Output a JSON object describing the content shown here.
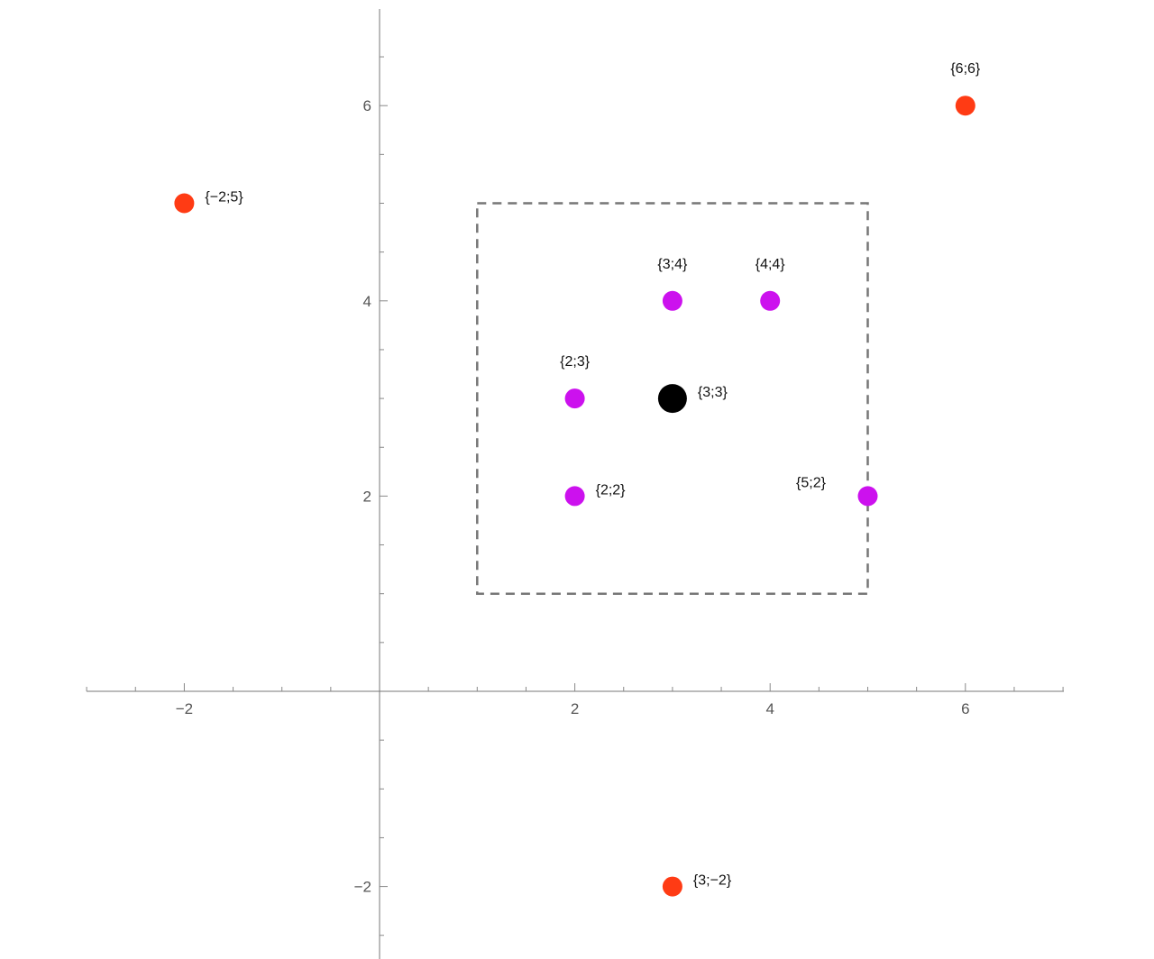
{
  "chart_data": {
    "type": "scatter",
    "xlim": [
      -3,
      7
    ],
    "ylim": [
      -2.7,
      7
    ],
    "x_ticks": [
      -2,
      2,
      4,
      6
    ],
    "y_ticks": [
      -2,
      2,
      4,
      6
    ],
    "x_tick_labels": [
      "−2",
      "2",
      "4",
      "6"
    ],
    "y_tick_labels": [
      "−2",
      "2",
      "4",
      "6"
    ],
    "grid": false,
    "region": {
      "x_min": 1,
      "x_max": 5,
      "y_min": 1,
      "y_max": 5,
      "style": "dashed",
      "color": "#777777"
    },
    "points": [
      {
        "x": -2,
        "y": 5,
        "label": "{−2;5}",
        "color": "#ff3b14",
        "label_pos": "right"
      },
      {
        "x": 6,
        "y": 6,
        "label": "{6;6}",
        "color": "#ff3b14",
        "label_pos": "above"
      },
      {
        "x": 3,
        "y": -2,
        "label": "{3;−2}",
        "color": "#ff3b14",
        "label_pos": "right"
      },
      {
        "x": 3,
        "y": 4,
        "label": "{3;4}",
        "color": "#cc11ee",
        "label_pos": "above"
      },
      {
        "x": 4,
        "y": 4,
        "label": "{4;4}",
        "color": "#cc11ee",
        "label_pos": "above"
      },
      {
        "x": 2,
        "y": 3,
        "label": "{2;3}",
        "color": "#cc11ee",
        "label_pos": "above"
      },
      {
        "x": 2,
        "y": 2,
        "label": "{2;2}",
        "color": "#cc11ee",
        "label_pos": "right"
      },
      {
        "x": 5,
        "y": 2,
        "label": "{5;2}",
        "color": "#cc11ee",
        "label_pos": "above-left"
      },
      {
        "x": 3,
        "y": 3,
        "label": "{3;3}",
        "color": "#000000",
        "label_pos": "right",
        "emphasis": true
      }
    ]
  }
}
